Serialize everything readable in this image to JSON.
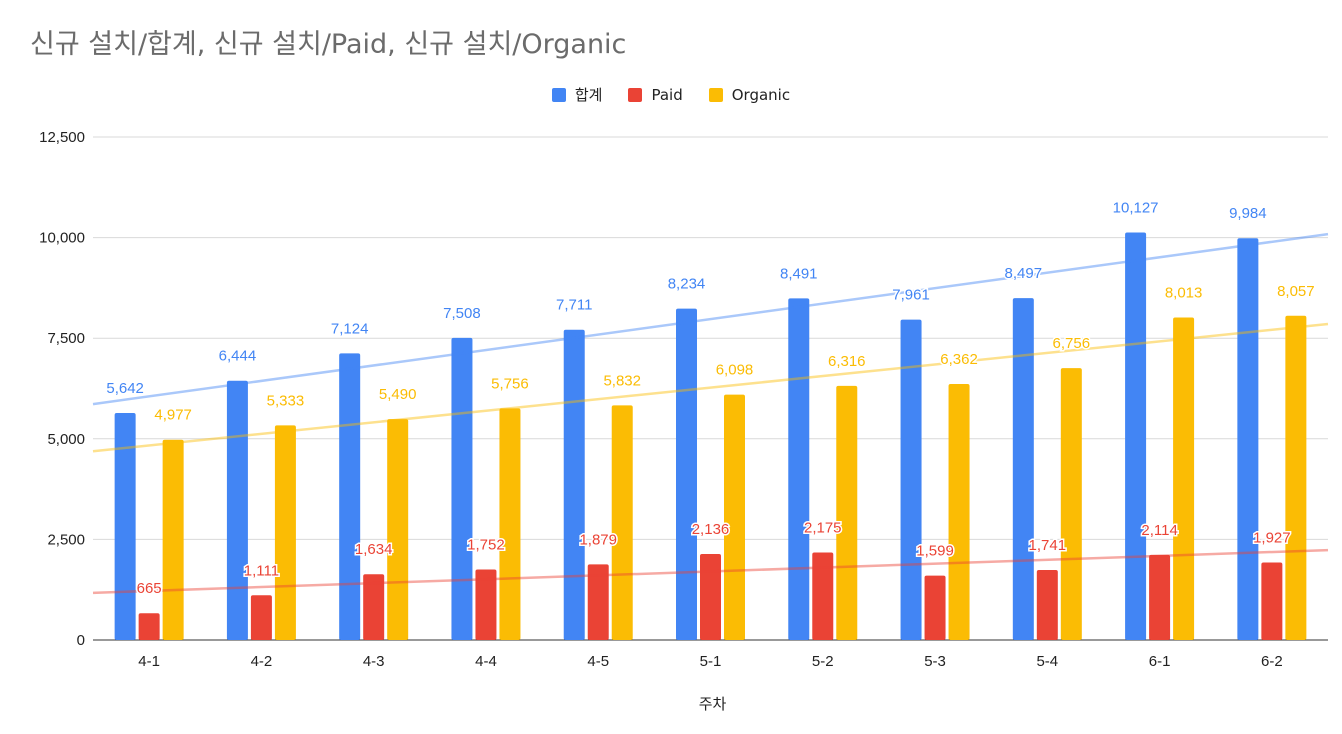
{
  "chart_data": {
    "type": "bar",
    "title": "신규 설치/합계, 신규 설치/Paid, 신규 설치/Organic",
    "xlabel": "주차",
    "ylabel": "",
    "categories": [
      "4-1",
      "4-2",
      "4-3",
      "4-4",
      "4-5",
      "5-1",
      "5-2",
      "5-3",
      "5-4",
      "6-1",
      "6-2"
    ],
    "ylim": [
      0,
      12500
    ],
    "yticks": [
      0,
      2500,
      5000,
      7500,
      10000,
      12500
    ],
    "ytick_labels": [
      "0",
      "2,500",
      "5,000",
      "7,500",
      "10,000",
      "12,500"
    ],
    "grid": true,
    "legend_position": "top-center",
    "trendlines": true,
    "series": [
      {
        "name": "합계",
        "color": "#4285f4",
        "values": [
          5642,
          6444,
          7124,
          7508,
          7711,
          8234,
          8491,
          7961,
          8497,
          10127,
          9984
        ],
        "labels": [
          "5,642",
          "6,444",
          "7,124",
          "7,508",
          "7,711",
          "8,234",
          "8,491",
          "7,961",
          "8,497",
          "10,127",
          "9,984"
        ]
      },
      {
        "name": "Paid",
        "color": "#ea4335",
        "values": [
          665,
          1111,
          1634,
          1752,
          1879,
          2136,
          2175,
          1599,
          1741,
          2114,
          1927
        ],
        "labels": [
          "665",
          "1,111",
          "1,634",
          "1,752",
          "1,879",
          "2,136",
          "2,175",
          "1,599",
          "1,741",
          "2,114",
          "1,927"
        ]
      },
      {
        "name": "Organic",
        "color": "#fbbc04",
        "values": [
          4977,
          5333,
          5490,
          5756,
          5832,
          6098,
          6316,
          6362,
          6756,
          8013,
          8057
        ],
        "labels": [
          "4,977",
          "5,333",
          "5,490",
          "5,756",
          "5,832",
          "6,098",
          "6,316",
          "6,362",
          "6,756",
          "8,013",
          "8,057"
        ]
      }
    ]
  }
}
